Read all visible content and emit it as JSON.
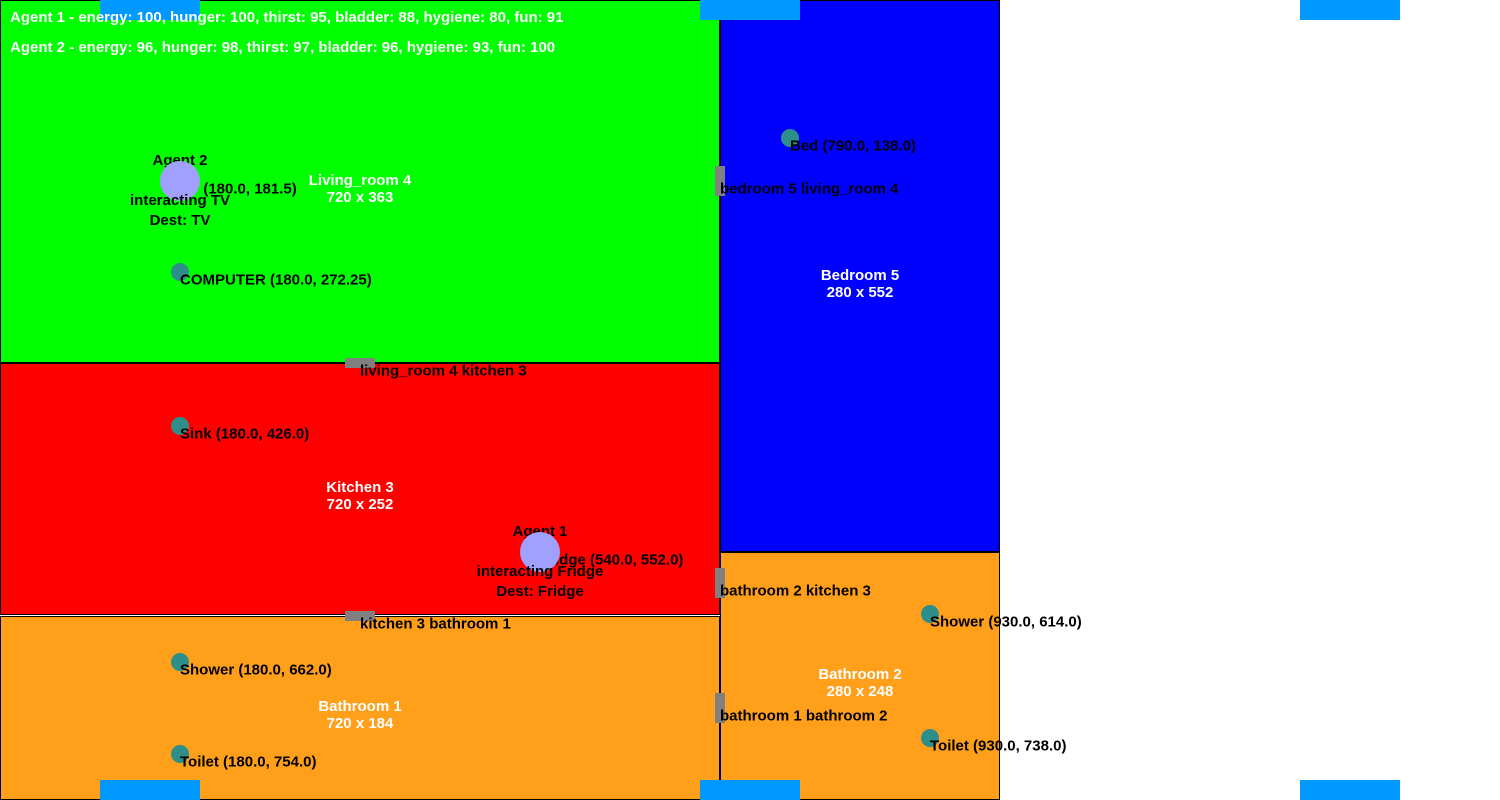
{
  "status": {
    "agent1": "Agent 1 - energy: 100, hunger: 100, thirst: 95, bladder: 88, hygiene: 80, fun: 91",
    "agent2": "Agent 2 - energy: 96, hunger: 98, thirst: 97, bladder: 96, hygiene: 93, fun: 100"
  },
  "rooms": {
    "living_room": {
      "name": "Living_room 4",
      "size": "720 x 363",
      "color": "#00ff00"
    },
    "kitchen": {
      "name": "Kitchen 3",
      "size": "720 x 252",
      "color": "#ff0000"
    },
    "bedroom": {
      "name": "Bedroom 5",
      "size": "280 x 552",
      "color": "#0000ff"
    },
    "bathroom1": {
      "name": "Bathroom 1",
      "size": "720 x 184",
      "color": "#ff9f1a"
    },
    "bathroom2": {
      "name": "Bathroom 2",
      "size": "280 x 248",
      "color": "#ff9f1a"
    }
  },
  "objects": {
    "computer": "COMPUTER (180.0, 272.25)",
    "bed": "Bed (790.0, 138.0)",
    "sink": "Sink (180.0, 426.0)",
    "fridge": "Fridge (540.0, 552.0)",
    "tv": "TV (180.0, 181.5)",
    "shower1": "Shower (180.0, 662.0)",
    "toilet1": "Toilet (180.0, 754.0)",
    "shower2": "Shower (930.0, 614.0)",
    "toilet2": "Toilet (930.0, 738.0)"
  },
  "doors": {
    "bedroom_living": "bedroom 5 living_room 4",
    "living_kitchen": "living_room 4 kitchen 3",
    "bath2_kitchen": "bathroom 2 kitchen 3",
    "kitchen_bath1": "kitchen 3 bathroom 1",
    "bath1_bath2": "bathroom 1 bathroom 2"
  },
  "agents": {
    "agent1": {
      "name": "Agent 1",
      "action": "interacting Fridge",
      "dest": "Dest: Fridge"
    },
    "agent2": {
      "name": "Agent 2",
      "action": "interacting TV",
      "dest": "Dest: TV"
    }
  },
  "colors": {
    "object": "#2e8f8a",
    "agent": "#a0a0ff",
    "door": "#808080",
    "window": "#0099ff"
  }
}
